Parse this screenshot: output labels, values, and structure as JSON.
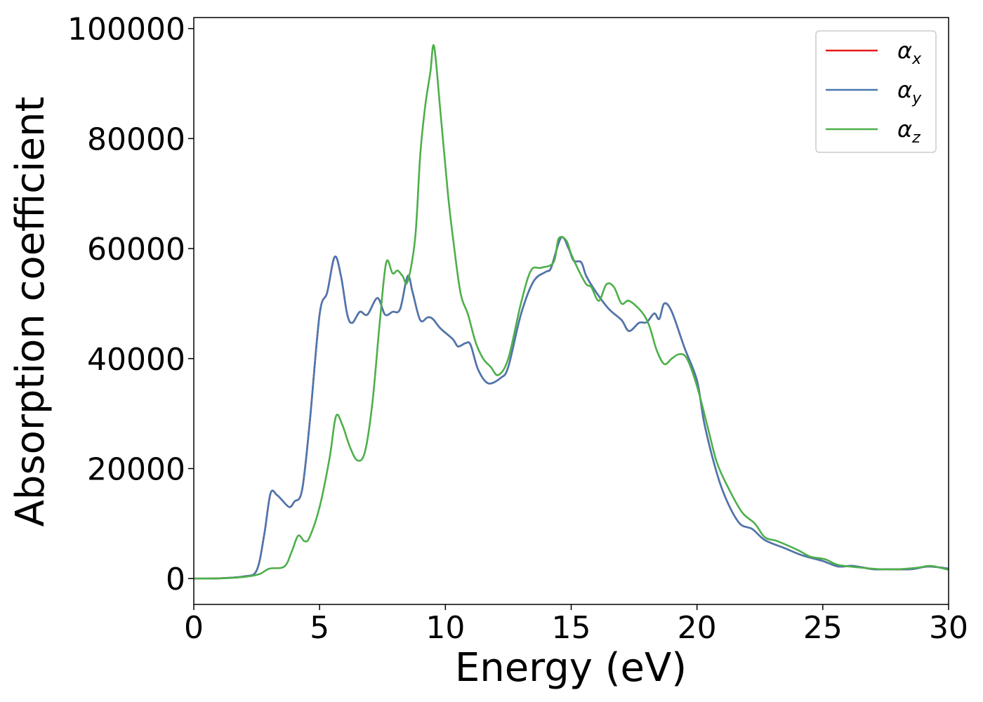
{
  "chart_data": {
    "type": "line",
    "xlabel": "Energy (eV)",
    "ylabel": "Absorption coefficient",
    "xlim": [
      0,
      30
    ],
    "ylim": [
      -4700,
      102000
    ],
    "xticks": [
      0,
      5,
      10,
      15,
      20,
      25,
      30
    ],
    "yticks": [
      0,
      20000,
      40000,
      60000,
      80000,
      100000
    ],
    "grid": false,
    "legend_position": "top-right",
    "series": [
      {
        "name": "α_x",
        "symbol": "α",
        "subscript": "x",
        "color": "#e41a1c",
        "points": [
          [
            0,
            0
          ],
          [
            1,
            50
          ],
          [
            2,
            400
          ],
          [
            2.5,
            1500
          ],
          [
            2.8,
            8000
          ],
          [
            3.05,
            15500
          ],
          [
            3.3,
            15200
          ],
          [
            3.5,
            14300
          ],
          [
            3.8,
            13000
          ],
          [
            4.0,
            14000
          ],
          [
            4.3,
            16000
          ],
          [
            4.6,
            28000
          ],
          [
            5.0,
            48000
          ],
          [
            5.3,
            52000
          ],
          [
            5.6,
            58500
          ],
          [
            5.85,
            55000
          ],
          [
            6.1,
            48000
          ],
          [
            6.3,
            46500
          ],
          [
            6.6,
            48500
          ],
          [
            6.9,
            48000
          ],
          [
            7.3,
            51000
          ],
          [
            7.6,
            48000
          ],
          [
            7.9,
            48500
          ],
          [
            8.2,
            49000
          ],
          [
            8.5,
            55000
          ],
          [
            8.7,
            52000
          ],
          [
            9.0,
            47000
          ],
          [
            9.3,
            47500
          ],
          [
            9.5,
            47200
          ],
          [
            9.8,
            45500
          ],
          [
            10.3,
            43500
          ],
          [
            10.5,
            42200
          ],
          [
            10.8,
            42800
          ],
          [
            11.0,
            42500
          ],
          [
            11.3,
            38000
          ],
          [
            11.7,
            35500
          ],
          [
            12.2,
            36500
          ],
          [
            12.5,
            38500
          ],
          [
            13.0,
            48000
          ],
          [
            13.5,
            54000
          ],
          [
            14.0,
            55800
          ],
          [
            14.2,
            56500
          ],
          [
            14.6,
            62000
          ],
          [
            14.9,
            60000
          ],
          [
            15.1,
            57800
          ],
          [
            15.4,
            57500
          ],
          [
            15.6,
            55000
          ],
          [
            16.0,
            52000
          ],
          [
            16.5,
            49000
          ],
          [
            17.0,
            47000
          ],
          [
            17.3,
            45000
          ],
          [
            17.7,
            46500
          ],
          [
            18.0,
            46600
          ],
          [
            18.3,
            48200
          ],
          [
            18.5,
            47200
          ],
          [
            18.7,
            50000
          ],
          [
            19.0,
            48500
          ],
          [
            19.5,
            42000
          ],
          [
            20.0,
            36000
          ],
          [
            20.3,
            28000
          ],
          [
            20.8,
            19000
          ],
          [
            21.2,
            14000
          ],
          [
            21.7,
            10000
          ],
          [
            22.2,
            9000
          ],
          [
            22.7,
            7000
          ],
          [
            23.5,
            5500
          ],
          [
            24.2,
            4200
          ],
          [
            25.0,
            3200
          ],
          [
            25.6,
            2200
          ],
          [
            26.2,
            2300
          ],
          [
            27.0,
            1700
          ],
          [
            27.5,
            1700
          ],
          [
            28.5,
            1700
          ],
          [
            29.2,
            2200
          ],
          [
            30,
            1800
          ]
        ]
      },
      {
        "name": "α_y",
        "symbol": "α",
        "subscript": "y",
        "color": "#4a78b0",
        "points": [
          [
            0,
            0
          ],
          [
            1,
            50
          ],
          [
            2,
            400
          ],
          [
            2.5,
            1500
          ],
          [
            2.8,
            8000
          ],
          [
            3.05,
            15500
          ],
          [
            3.3,
            15200
          ],
          [
            3.5,
            14300
          ],
          [
            3.8,
            13000
          ],
          [
            4.0,
            14000
          ],
          [
            4.3,
            16000
          ],
          [
            4.6,
            28000
          ],
          [
            5.0,
            48000
          ],
          [
            5.3,
            52000
          ],
          [
            5.6,
            58500
          ],
          [
            5.85,
            55000
          ],
          [
            6.1,
            48000
          ],
          [
            6.3,
            46500
          ],
          [
            6.6,
            48500
          ],
          [
            6.9,
            48000
          ],
          [
            7.3,
            51000
          ],
          [
            7.6,
            48000
          ],
          [
            7.9,
            48500
          ],
          [
            8.2,
            49000
          ],
          [
            8.5,
            55000
          ],
          [
            8.7,
            52000
          ],
          [
            9.0,
            47000
          ],
          [
            9.3,
            47500
          ],
          [
            9.5,
            47200
          ],
          [
            9.8,
            45500
          ],
          [
            10.3,
            43500
          ],
          [
            10.5,
            42200
          ],
          [
            10.8,
            42800
          ],
          [
            11.0,
            42500
          ],
          [
            11.3,
            38000
          ],
          [
            11.7,
            35500
          ],
          [
            12.2,
            36500
          ],
          [
            12.5,
            38500
          ],
          [
            13.0,
            48000
          ],
          [
            13.5,
            54000
          ],
          [
            14.0,
            55800
          ],
          [
            14.2,
            56500
          ],
          [
            14.6,
            62000
          ],
          [
            14.9,
            60000
          ],
          [
            15.1,
            57800
          ],
          [
            15.4,
            57500
          ],
          [
            15.6,
            55000
          ],
          [
            16.0,
            52000
          ],
          [
            16.5,
            49000
          ],
          [
            17.0,
            47000
          ],
          [
            17.3,
            45000
          ],
          [
            17.7,
            46500
          ],
          [
            18.0,
            46600
          ],
          [
            18.3,
            48200
          ],
          [
            18.5,
            47200
          ],
          [
            18.7,
            50000
          ],
          [
            19.0,
            48500
          ],
          [
            19.5,
            42000
          ],
          [
            20.0,
            36000
          ],
          [
            20.3,
            28000
          ],
          [
            20.8,
            19000
          ],
          [
            21.2,
            14000
          ],
          [
            21.7,
            10000
          ],
          [
            22.2,
            9000
          ],
          [
            22.7,
            7000
          ],
          [
            23.5,
            5500
          ],
          [
            24.2,
            4200
          ],
          [
            25.0,
            3200
          ],
          [
            25.6,
            2200
          ],
          [
            26.2,
            2300
          ],
          [
            27.0,
            1700
          ],
          [
            27.5,
            1700
          ],
          [
            28.5,
            1700
          ],
          [
            29.2,
            2200
          ],
          [
            30,
            1800
          ]
        ]
      },
      {
        "name": "α_z",
        "symbol": "α",
        "subscript": "z",
        "color": "#4daf4a",
        "points": [
          [
            0,
            0
          ],
          [
            1,
            30
          ],
          [
            2,
            300
          ],
          [
            2.6,
            800
          ],
          [
            3.0,
            1800
          ],
          [
            3.6,
            2200
          ],
          [
            3.9,
            5000
          ],
          [
            4.15,
            7800
          ],
          [
            4.4,
            6800
          ],
          [
            4.6,
            7500
          ],
          [
            5.0,
            13000
          ],
          [
            5.4,
            22000
          ],
          [
            5.65,
            29500
          ],
          [
            5.9,
            28000
          ],
          [
            6.2,
            24000
          ],
          [
            6.5,
            21500
          ],
          [
            6.8,
            23000
          ],
          [
            7.1,
            32000
          ],
          [
            7.4,
            47000
          ],
          [
            7.65,
            57500
          ],
          [
            7.9,
            55500
          ],
          [
            8.1,
            56000
          ],
          [
            8.3,
            55000
          ],
          [
            8.5,
            54000
          ],
          [
            8.8,
            62000
          ],
          [
            9.0,
            77000
          ],
          [
            9.2,
            86000
          ],
          [
            9.4,
            92000
          ],
          [
            9.55,
            96800
          ],
          [
            9.8,
            85000
          ],
          [
            10.1,
            70000
          ],
          [
            10.3,
            62000
          ],
          [
            10.6,
            52000
          ],
          [
            10.9,
            48000
          ],
          [
            11.2,
            43000
          ],
          [
            11.5,
            40000
          ],
          [
            11.8,
            38500
          ],
          [
            12.1,
            37000
          ],
          [
            12.5,
            40000
          ],
          [
            13.0,
            50000
          ],
          [
            13.4,
            56000
          ],
          [
            13.8,
            56500
          ],
          [
            14.3,
            57500
          ],
          [
            14.5,
            61800
          ],
          [
            14.8,
            61500
          ],
          [
            15.0,
            59000
          ],
          [
            15.3,
            56000
          ],
          [
            15.6,
            53500
          ],
          [
            15.8,
            53000
          ],
          [
            16.1,
            50500
          ],
          [
            16.4,
            53500
          ],
          [
            16.7,
            53000
          ],
          [
            17.0,
            50000
          ],
          [
            17.3,
            50500
          ],
          [
            17.8,
            48500
          ],
          [
            18.1,
            46000
          ],
          [
            18.4,
            41500
          ],
          [
            18.7,
            39000
          ],
          [
            19.0,
            40000
          ],
          [
            19.3,
            40800
          ],
          [
            19.6,
            40000
          ],
          [
            20.0,
            35000
          ],
          [
            20.4,
            28000
          ],
          [
            20.8,
            21000
          ],
          [
            21.3,
            16000
          ],
          [
            21.8,
            12000
          ],
          [
            22.3,
            10000
          ],
          [
            22.7,
            7500
          ],
          [
            23.2,
            6800
          ],
          [
            24.0,
            5200
          ],
          [
            24.5,
            4000
          ],
          [
            25.1,
            3500
          ],
          [
            25.6,
            2500
          ],
          [
            26.5,
            2000
          ],
          [
            27.3,
            1700
          ],
          [
            28.0,
            1700
          ],
          [
            28.8,
            2000
          ],
          [
            29.3,
            2300
          ],
          [
            30,
            1600
          ]
        ]
      }
    ]
  }
}
